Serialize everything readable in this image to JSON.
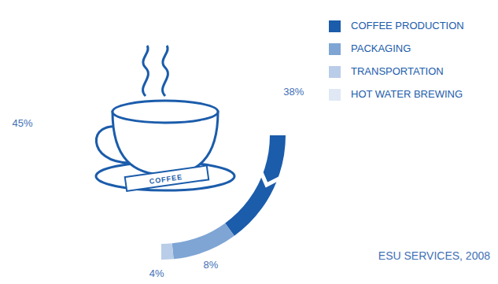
{
  "chart_data": {
    "type": "pie",
    "categories": [
      "COFFEE PRODUCTION",
      "PACKAGING",
      "TRANSPORTATION",
      "HOT WATER BREWING"
    ],
    "values": [
      38,
      8,
      4,
      45
    ],
    "value_labels": [
      "38%",
      "8%",
      "4%",
      "45%"
    ],
    "colors": [
      "#1b5cab",
      "#7ea5d4",
      "#b9cde8",
      "#dfe8f4"
    ],
    "data_labels": true,
    "legend": "upper right",
    "source": "ESU SERVICES, 2008",
    "annotations": [
      "COFFEE"
    ]
  }
}
